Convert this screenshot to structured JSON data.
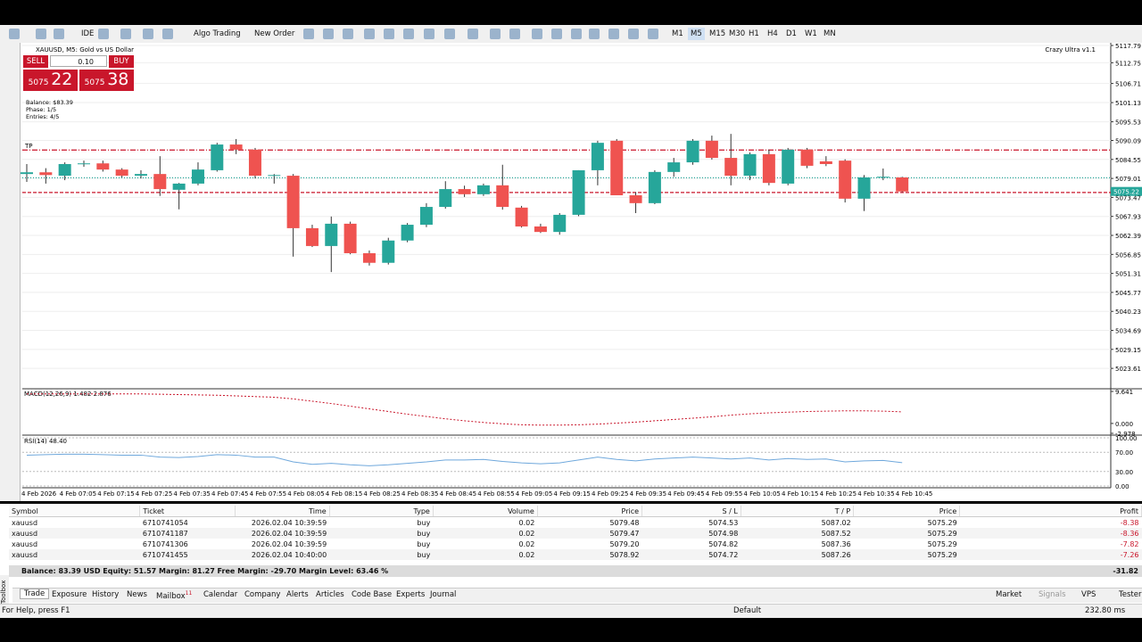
{
  "toolbar": {
    "buttons": [
      "IDE",
      "Algo Trading",
      "New Order"
    ],
    "timeframes": [
      "M1",
      "M5",
      "M15",
      "M30",
      "H1",
      "H4",
      "D1",
      "W1",
      "MN"
    ]
  },
  "chart": {
    "title": "XAUUSD, M5:  Gold vs US Dollar",
    "indicator": "Crazy Ultra v1.1",
    "trade_panel": {
      "sell": "SELL",
      "buy": "BUY",
      "lot": "0.10",
      "bid_big": "5075",
      "bid_small": "22",
      "ask_big": "5075",
      "ask_small": "38"
    },
    "info": [
      "Balance: $83.39",
      "Phase: 1/5",
      "Entries: 4/5"
    ],
    "tp_label": "TP",
    "ylim": [
      5017.66,
      5118.57
    ],
    "yticks": [
      5117.79,
      5112.75,
      5106.71,
      5101.13,
      5095.53,
      5090.09,
      5084.55,
      5079.01,
      5073.47,
      5067.93,
      5062.39,
      5056.85,
      5051.31,
      5045.77,
      5040.23,
      5034.69,
      5029.15,
      5023.61
    ],
    "current_price": {
      "value": 5075.22,
      "label": "5075.22"
    },
    "levels": {
      "tp": 5087.3,
      "entry": 5079.2,
      "sl": 5074.9
    },
    "candles": [
      [
        5080.3,
        5083.2,
        5078.0,
        5080.8
      ],
      [
        5080.8,
        5082.0,
        5077.5,
        5080.0
      ],
      [
        5079.8,
        5083.7,
        5078.5,
        5083.2
      ],
      [
        5083.2,
        5084.2,
        5082.4,
        5083.4
      ],
      [
        5083.4,
        5084.2,
        5081.0,
        5081.6
      ],
      [
        5081.6,
        5082.0,
        5079.3,
        5079.8
      ],
      [
        5079.8,
        5081.4,
        5079.0,
        5080.3
      ],
      [
        5080.3,
        5085.5,
        5073.9,
        5075.9
      ],
      [
        5075.7,
        5077.7,
        5070.0,
        5077.5
      ],
      [
        5077.5,
        5083.7,
        5077.0,
        5081.6
      ],
      [
        5081.4,
        5089.4,
        5081.0,
        5088.9
      ],
      [
        5088.9,
        5090.5,
        5086.1,
        5087.4
      ],
      [
        5087.4,
        5087.9,
        5079.0,
        5079.8
      ],
      [
        5079.8,
        5080.3,
        5077.5,
        5080.0
      ],
      [
        5079.8,
        5080.3,
        5056.2,
        5064.5
      ],
      [
        5064.5,
        5065.5,
        5059.0,
        5059.3
      ],
      [
        5059.3,
        5067.9,
        5051.7,
        5065.8
      ],
      [
        5065.8,
        5066.4,
        5056.9,
        5057.2
      ],
      [
        5057.2,
        5058.0,
        5053.6,
        5054.4
      ],
      [
        5054.4,
        5061.7,
        5053.9,
        5060.9
      ],
      [
        5060.9,
        5066.0,
        5060.4,
        5065.5
      ],
      [
        5065.5,
        5071.8,
        5064.8,
        5070.7
      ],
      [
        5070.7,
        5078.2,
        5070.2,
        5075.9
      ],
      [
        5075.9,
        5076.9,
        5073.6,
        5074.4
      ],
      [
        5074.4,
        5077.5,
        5073.9,
        5077.0
      ],
      [
        5077.0,
        5083.0,
        5069.9,
        5070.7
      ],
      [
        5070.5,
        5071.0,
        5064.7,
        5065.0
      ],
      [
        5065.0,
        5065.8,
        5063.1,
        5063.4
      ],
      [
        5063.4,
        5068.9,
        5062.6,
        5068.4
      ],
      [
        5068.4,
        5081.4,
        5068.0,
        5081.4
      ],
      [
        5081.4,
        5090.0,
        5077.0,
        5089.4
      ],
      [
        5090.0,
        5090.5,
        5074.1,
        5074.1
      ],
      [
        5074.1,
        5075.0,
        5068.9,
        5071.8
      ],
      [
        5071.8,
        5081.4,
        5071.5,
        5080.9
      ],
      [
        5080.9,
        5085.0,
        5079.5,
        5083.7
      ],
      [
        5083.7,
        5090.5,
        5083.0,
        5090.0
      ],
      [
        5090.0,
        5091.5,
        5084.5,
        5085.0
      ],
      [
        5085.0,
        5092.0,
        5077.0,
        5079.8
      ],
      [
        5079.8,
        5086.6,
        5078.5,
        5086.1
      ],
      [
        5086.1,
        5087.4,
        5077.0,
        5077.7
      ],
      [
        5077.5,
        5087.9,
        5077.0,
        5087.4
      ],
      [
        5087.4,
        5087.9,
        5082.0,
        5082.7
      ],
      [
        5084.0,
        5085.5,
        5082.6,
        5083.2
      ],
      [
        5084.2,
        5084.6,
        5072.0,
        5073.1
      ],
      [
        5073.1,
        5080.0,
        5069.5,
        5079.3
      ],
      [
        5079.3,
        5081.9,
        5078.5,
        5079.5
      ],
      [
        5079.3,
        5079.5,
        5075.0,
        5075.2
      ]
    ],
    "time_labels": [
      "4 Feb 2026",
      "4 Feb 07:05",
      "4 Feb 07:15",
      "4 Feb 07:25",
      "4 Feb 07:35",
      "4 Feb 07:45",
      "4 Feb 07:55",
      "4 Feb 08:05",
      "4 Feb 08:15",
      "4 Feb 08:25",
      "4 Feb 08:35",
      "4 Feb 08:45",
      "4 Feb 08:55",
      "4 Feb 09:05",
      "4 Feb 09:15",
      "4 Feb 09:25",
      "4 Feb 09:35",
      "4 Feb 09:45",
      "4 Feb 09:55",
      "4 Feb 10:05",
      "4 Feb 10:15",
      "4 Feb 10:25",
      "4 Feb 10:35",
      "4 Feb 10:45"
    ],
    "macd": {
      "label": "MACD(12,26,9) 1.482 2.876",
      "ylim": [
        -3.52,
        10.18
      ],
      "ticks": [
        9.641,
        {
          "value": 0,
          "label": "0.000"
        },
        -2.978
      ],
      "signal": [
        8.9,
        8.9,
        8.9,
        8.9,
        8.9,
        8.9,
        8.9,
        8.8,
        8.7,
        8.6,
        8.5,
        8.3,
        8.1,
        7.9,
        7.4,
        6.7,
        6.0,
        5.2,
        4.4,
        3.6,
        2.8,
        2.1,
        1.4,
        0.8,
        0.3,
        -0.1,
        -0.4,
        -0.5,
        -0.5,
        -0.4,
        -0.2,
        0.1,
        0.4,
        0.8,
        1.2,
        1.6,
        2.0,
        2.5,
        2.9,
        3.2,
        3.4,
        3.6,
        3.7,
        3.8,
        3.8,
        3.7,
        3.5
      ]
    },
    "rsi": {
      "label": "RSI(14) 48.40",
      "ylim": [
        -1.85,
        103.7
      ],
      "ticks": [
        {
          "value": 100,
          "label": "100.00"
        },
        {
          "value": 70,
          "label": "70.00"
        },
        {
          "value": 30,
          "label": "30.00"
        },
        {
          "value": 0,
          "label": "0.00"
        }
      ],
      "values": [
        64,
        65,
        66,
        66,
        65,
        64,
        64,
        60,
        59,
        61,
        65,
        64,
        60,
        60,
        50,
        45,
        47,
        44,
        42,
        44,
        47,
        50,
        54,
        54,
        55,
        51,
        48,
        46,
        48,
        54,
        60,
        55,
        52,
        56,
        58,
        60,
        58,
        56,
        58,
        54,
        57,
        55,
        56,
        50,
        52,
        53,
        48.4
      ]
    }
  },
  "trade_table": {
    "headers": [
      "Symbol",
      "Ticket",
      "Time",
      "Type",
      "Volume",
      "Price",
      "S / L",
      "T / P",
      "Price",
      "Profit"
    ],
    "rows": [
      [
        "xauusd",
        "6710741054",
        "2026.02.04 10:39:59",
        "buy",
        "0.02",
        "5079.48",
        "5074.53",
        "5087.02",
        "5075.29",
        "-8.38"
      ],
      [
        "xauusd",
        "6710741187",
        "2026.02.04 10:39:59",
        "buy",
        "0.02",
        "5079.47",
        "5074.98",
        "5087.52",
        "5075.29",
        "-8.36"
      ],
      [
        "xauusd",
        "6710741306",
        "2026.02.04 10:39:59",
        "buy",
        "0.02",
        "5079.20",
        "5074.82",
        "5087.36",
        "5075.29",
        "-7.82"
      ],
      [
        "xauusd",
        "6710741455",
        "2026.02.04 10:40:00",
        "buy",
        "0.02",
        "5078.92",
        "5074.72",
        "5087.26",
        "5075.29",
        "-7.26"
      ]
    ],
    "summary": "Balance: 83.39 USD  Equity: 51.57  Margin: 81.27  Free Margin: -29.70  Margin Level: 63.46 %",
    "total_profit": "-31.82"
  },
  "tabs": [
    "Trade",
    "Exposure",
    "History",
    "News",
    "Mailbox",
    "Calendar",
    "Company",
    "Alerts",
    "Articles",
    "Code Base",
    "Experts",
    "Journal"
  ],
  "mailbox_badge": "11",
  "toolbox": "Toolbox",
  "right_tabs": [
    "Market",
    "Signals",
    "VPS",
    "Tester"
  ],
  "status": {
    "help": "For Help, press F1",
    "profile": "Default",
    "ping": "232.80 ms"
  }
}
